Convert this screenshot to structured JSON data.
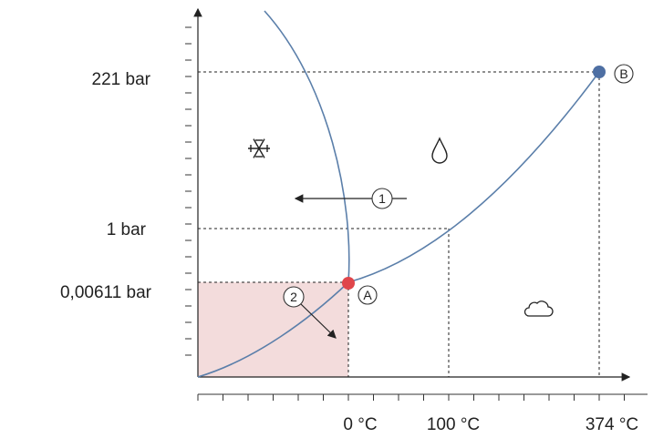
{
  "y_labels": {
    "p221": "221 bar",
    "p1": "1 bar",
    "p00611": "0,00611 bar"
  },
  "x_labels": {
    "t0": "0 °C",
    "t100": "100 °C",
    "t374": "374 °C"
  },
  "markers": {
    "A": "A",
    "B": "B",
    "one": "1",
    "two": "2"
  },
  "icons": {
    "solid": "snowflake-icon",
    "liquid": "droplet-icon",
    "gas": "cloud-icon"
  },
  "colors": {
    "curve": "#5b7faa",
    "point_A": "#e0464b",
    "point_B": "#4e6fa3",
    "shaded_region": "#f3dcdc"
  }
}
